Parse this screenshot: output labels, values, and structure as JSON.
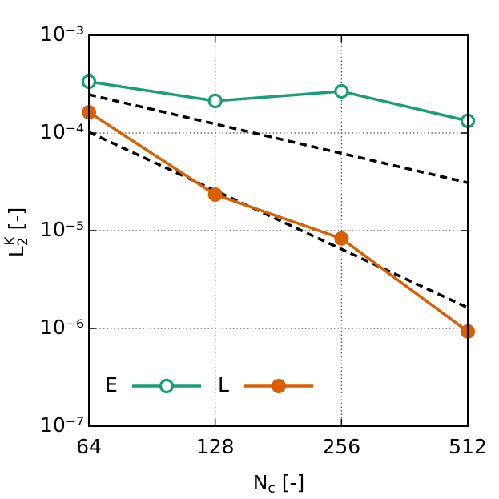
{
  "chart_data": {
    "type": "line",
    "x": [
      64,
      128,
      256,
      512
    ],
    "xlim": [
      64,
      512
    ],
    "xticks": [
      64,
      128,
      256,
      512
    ],
    "xscale": "log",
    "ylim": [
      1e-07,
      0.001
    ],
    "yscale": "log",
    "yticks": [
      {
        "value": 1e-07,
        "label": "10⁻⁷"
      },
      {
        "value": 1e-06,
        "label": "10⁻⁶"
      },
      {
        "value": 1e-05,
        "label": "10⁻⁵"
      },
      {
        "value": 0.0001,
        "label": "10⁻⁴"
      },
      {
        "value": 0.001,
        "label": "10⁻³"
      }
    ],
    "grid": true,
    "legend": "lower left",
    "xlabel": {
      "main": "N",
      "sub": "c",
      "rest": " [-]"
    },
    "ylabel": {
      "main": "L",
      "sub": "2",
      "sup": "K",
      "rest": " [-]"
    },
    "series": [
      {
        "name": "E",
        "color": "#1b9e77",
        "marker": "open",
        "values": [
          0.000335,
          0.000213,
          0.000267,
          0.000133
        ]
      },
      {
        "name": "L",
        "color": "#d95f02",
        "marker": "filled",
        "values": [
          0.000163,
          2.34e-05,
          8.3e-06,
          9.3e-07
        ]
      }
    ],
    "reference_lines": [
      {
        "color": "#000000",
        "x": [
          64,
          512
        ],
        "values": [
          0.000247,
          3.1e-05
        ]
      },
      {
        "color": "#000000",
        "x": [
          64,
          512
        ],
        "values": [
          0.000102,
          1.63e-06
        ]
      }
    ]
  }
}
